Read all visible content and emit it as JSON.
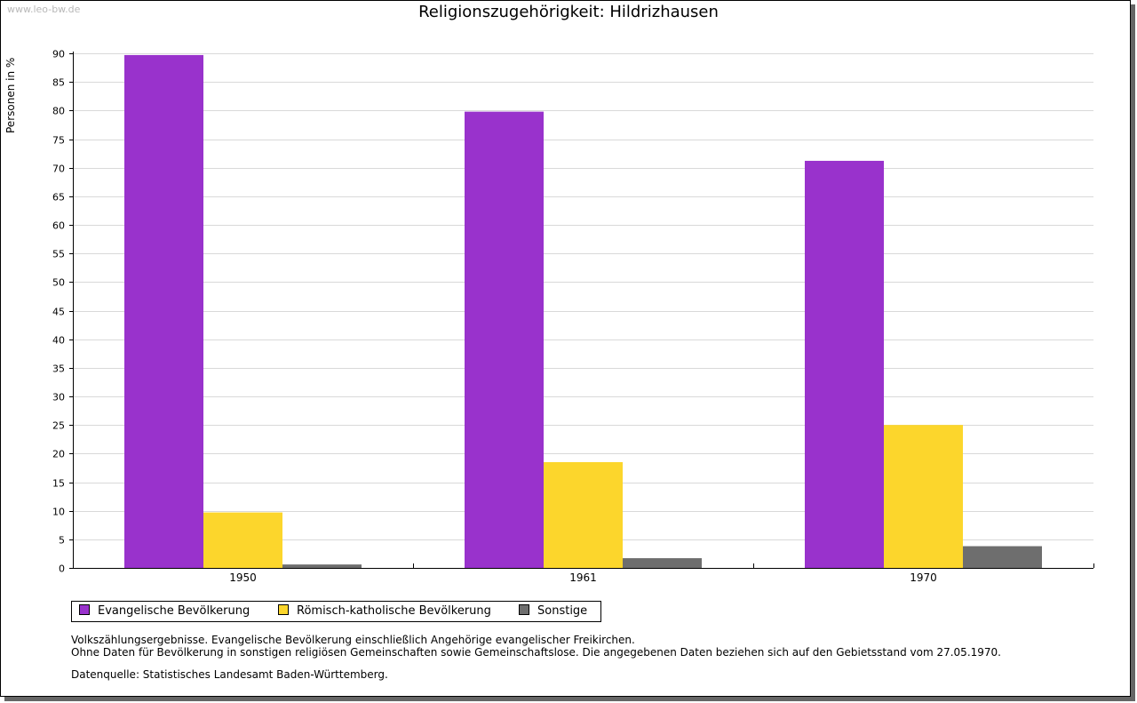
{
  "watermark": "www.leo-bw.de",
  "chart_data": {
    "type": "bar",
    "title": "Religionszugehörigkeit: Hildrizhausen",
    "xlabel": "",
    "ylabel": "Personen in %",
    "ylim": [
      0,
      90
    ],
    "yticks": [
      0,
      5,
      10,
      15,
      20,
      25,
      30,
      35,
      40,
      45,
      50,
      55,
      60,
      65,
      70,
      75,
      80,
      85,
      90
    ],
    "categories": [
      "1950",
      "1961",
      "1970"
    ],
    "series": [
      {
        "name": "Evangelische Bevölkerung",
        "color": "#9932CC",
        "values": [
          89.7,
          79.8,
          71.2
        ]
      },
      {
        "name": "Römisch-katholische Bevölkerung",
        "color": "#FCD62C",
        "values": [
          9.7,
          18.5,
          25.0
        ]
      },
      {
        "name": "Sonstige",
        "color": "#6E6E6E",
        "values": [
          0.6,
          1.7,
          3.8
        ]
      }
    ],
    "grid": true,
    "legend": "bottom-left"
  },
  "notes": {
    "line1": "Volkszählungsergebnisse. Evangelische Bevölkerung einschließlich Angehörige evangelischer Freikirchen.",
    "line2": "Ohne Daten für Bevölkerung in sonstigen religiösen Gemeinschaften sowie Gemeinschaftslose. Die angegebenen Daten beziehen sich auf den Gebietsstand vom 27.05.1970.",
    "source": "Datenquelle: Statistisches Landesamt Baden-Württemberg."
  }
}
